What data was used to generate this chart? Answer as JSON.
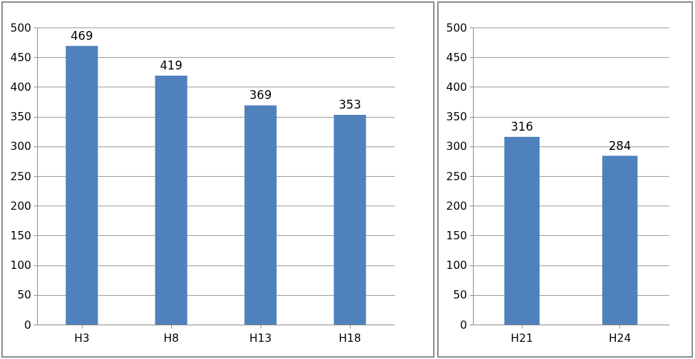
{
  "chart_data": [
    {
      "type": "bar",
      "categories": [
        "H3",
        "H8",
        "H13",
        "H18"
      ],
      "values": [
        469,
        419,
        369,
        353
      ],
      "color": "#4f81bd",
      "ylim": [
        0,
        500
      ],
      "yticks": [
        0,
        50,
        100,
        150,
        200,
        250,
        300,
        350,
        400,
        450,
        500
      ],
      "grid": "y",
      "data_labels": true
    },
    {
      "type": "bar",
      "categories": [
        "H21",
        "H24"
      ],
      "values": [
        316,
        284
      ],
      "color": "#4f81bd",
      "ylim": [
        0,
        500
      ],
      "yticks": [
        0,
        50,
        100,
        150,
        200,
        250,
        300,
        350,
        400,
        450,
        500
      ],
      "grid": "y",
      "data_labels": true
    }
  ]
}
